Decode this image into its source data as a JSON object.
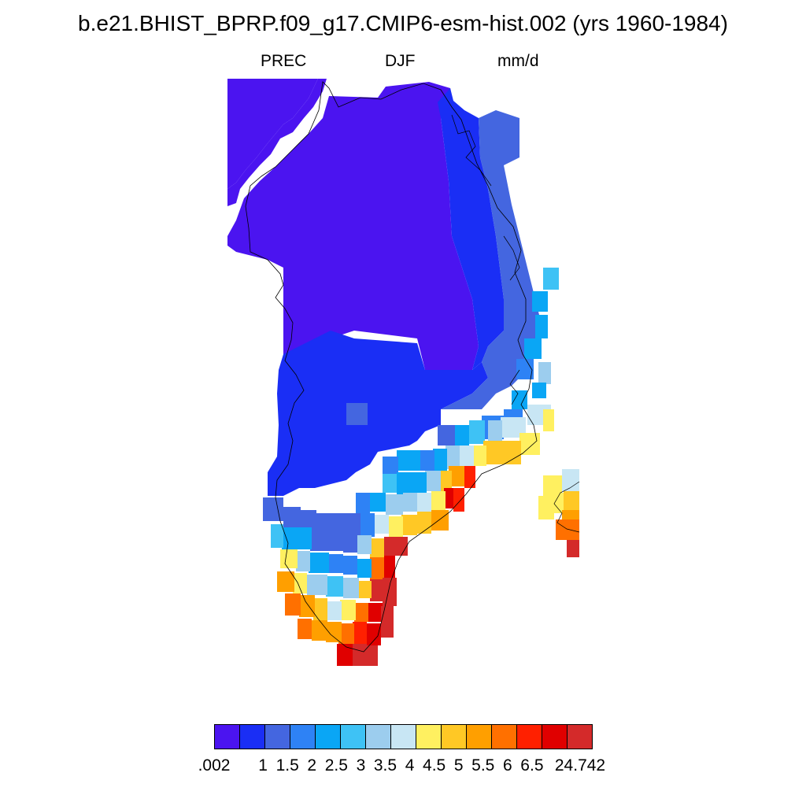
{
  "title": "b.e21.BHIST_BPRP.f09_g17.CMIP6-esm-hist.002 (yrs 1960-1984)",
  "variable": "PREC",
  "season": "DJF",
  "units": "mm/d",
  "colorbar": {
    "labels": [
      ".002",
      "1",
      "1.5",
      "2",
      "2.5",
      "3",
      "3.5",
      "4",
      "4.5",
      "5",
      "5.5",
      "6",
      "6.5",
      "24.742"
    ],
    "colors": [
      "#4b14f0",
      "#1a2ef5",
      "#4466e0",
      "#2e82f5",
      "#0aa6f5",
      "#3ec2f5",
      "#9ccdee",
      "#c8e6f4",
      "#fff060",
      "#ffc825",
      "#ff9f00",
      "#ff7000",
      "#ff2000",
      "#e00000",
      "#d42a2a"
    ]
  }
}
